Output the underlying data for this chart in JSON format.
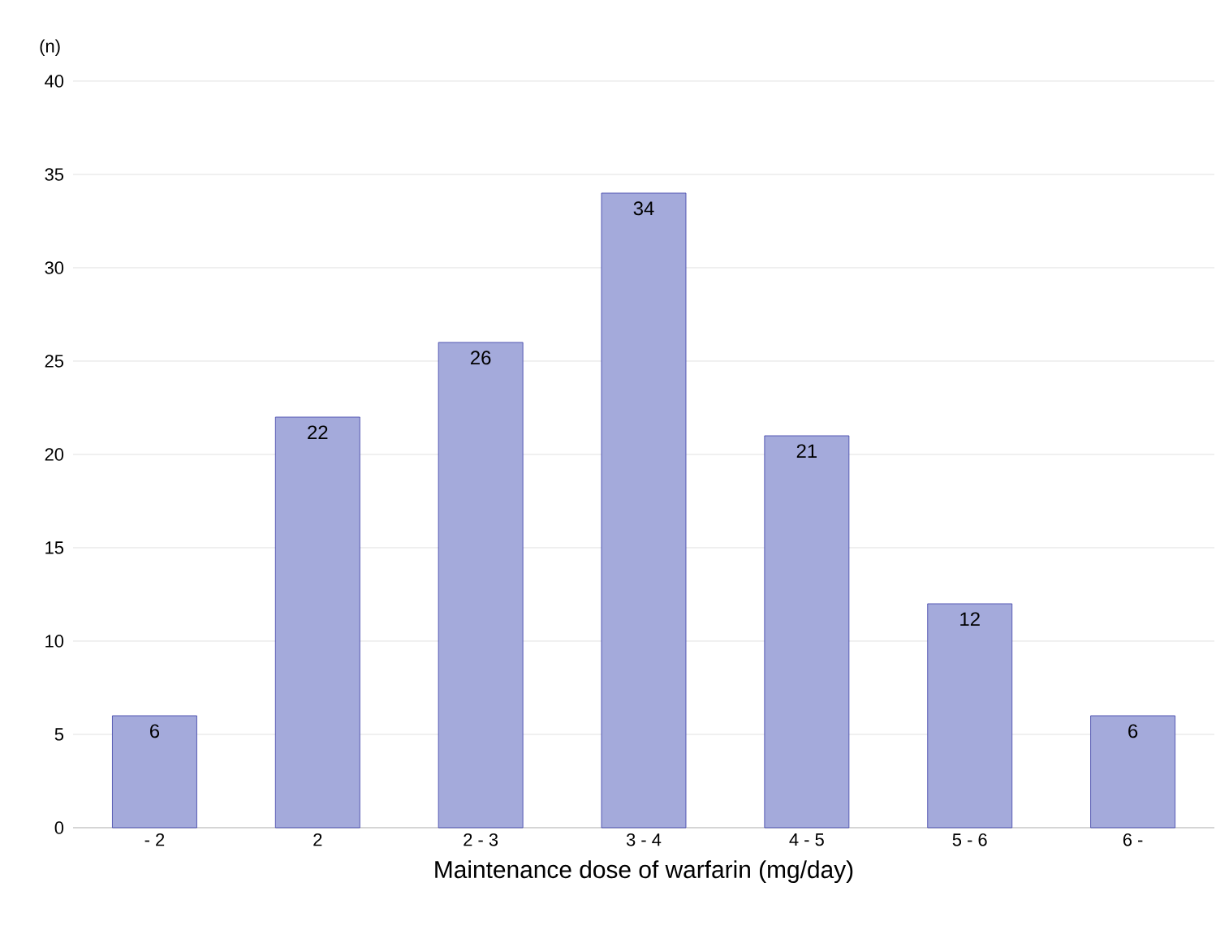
{
  "chart_data": {
    "type": "bar",
    "xlabel": "Maintenance dose of warfarin (mg/day)",
    "ylabel": "(n)",
    "categories": [
      "- 2",
      "2",
      "2 - 3",
      "3 - 4",
      "4 - 5",
      "5 - 6",
      "6 -"
    ],
    "values": [
      6,
      22,
      26,
      34,
      21,
      12,
      6
    ],
    "color": "#a4aadb",
    "ylim": [
      0,
      40
    ],
    "yticks": [
      0,
      5,
      10,
      15,
      20,
      25,
      30,
      35,
      40
    ],
    "grid": "y",
    "data_labels": true
  }
}
